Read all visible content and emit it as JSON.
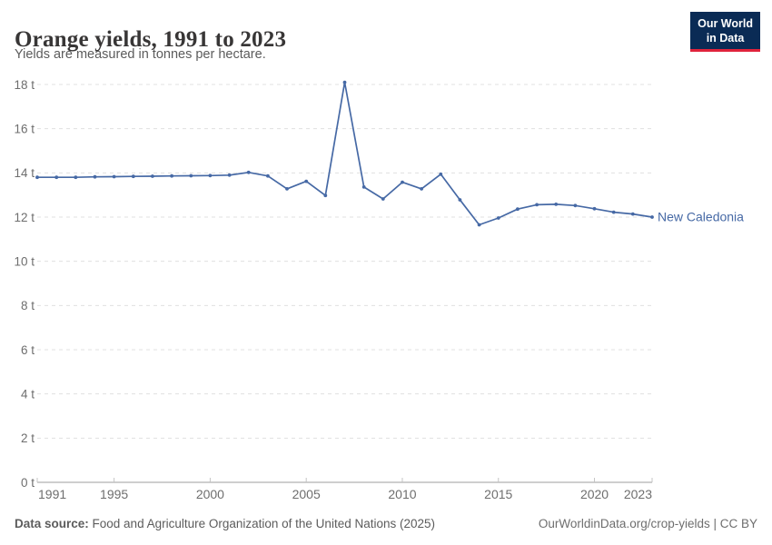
{
  "header": {
    "title": "Orange yields, 1991 to 2023",
    "subtitle": "Yields are measured in tonnes per hectare.",
    "logo": {
      "line1": "Our World",
      "line2": "in Data",
      "bg_color": "#0A2B55",
      "accent_color": "#E0233C"
    }
  },
  "chart_data": {
    "type": "line",
    "title": "Orange yields, 1991 to 2023",
    "ylabel": "tonnes per hectare",
    "ylim": [
      0,
      18
    ],
    "xlim": [
      1991,
      2023
    ],
    "yticks": [
      0,
      2,
      4,
      6,
      8,
      10,
      12,
      14,
      16,
      18
    ],
    "ytick_suffix": " t",
    "xticks": [
      1991,
      1995,
      2000,
      2005,
      2010,
      2015,
      2020,
      2023
    ],
    "grid": "horizontal-dashed",
    "legend_position": "end-of-line-label",
    "series": [
      {
        "name": "New Caledonia",
        "color": "#4669A5",
        "years": [
          1991,
          1992,
          1993,
          1994,
          1995,
          1996,
          1997,
          1998,
          1999,
          2000,
          2001,
          2002,
          2003,
          2004,
          2005,
          2006,
          2007,
          2008,
          2009,
          2010,
          2011,
          2012,
          2013,
          2014,
          2015,
          2016,
          2017,
          2018,
          2019,
          2020,
          2021,
          2022,
          2023
        ],
        "values": [
          13.8,
          13.8,
          13.8,
          13.82,
          13.83,
          13.84,
          13.85,
          13.86,
          13.87,
          13.88,
          13.9,
          14.02,
          13.86,
          13.28,
          13.62,
          12.98,
          18.1,
          13.36,
          12.82,
          13.58,
          13.28,
          13.94,
          12.78,
          11.65,
          11.96,
          12.36,
          12.56,
          12.58,
          12.52,
          12.38,
          12.22,
          12.14,
          12.0
        ]
      }
    ]
  },
  "footer": {
    "source_label": "Data source:",
    "source_text": " Food and Agriculture Organization of the United Nations (2025)",
    "right_text": "OurWorldinData.org/crop-yields | CC BY"
  }
}
